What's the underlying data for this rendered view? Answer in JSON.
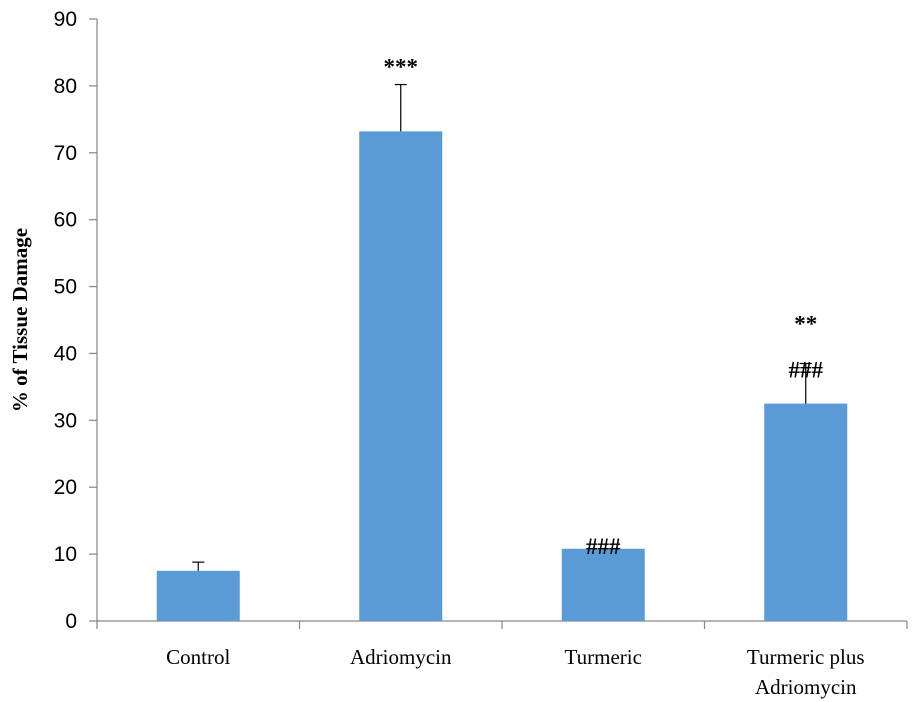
{
  "chart_data": {
    "type": "bar",
    "title": "",
    "xlabel": "",
    "ylabel": "% of Tissue Damage",
    "ylim": [
      0,
      90
    ],
    "yticks": [
      0,
      10,
      20,
      30,
      40,
      50,
      60,
      70,
      80,
      90
    ],
    "grid": false,
    "legend": "none",
    "bar_color": "#5b9bd5",
    "categories": [
      [
        "Control"
      ],
      [
        "Adriomycin"
      ],
      [
        "Turmeric"
      ],
      [
        "Turmeric plus",
        "Adriomycin"
      ]
    ],
    "values": [
      7.5,
      73.2,
      10.8,
      32.5
    ],
    "error_upper": [
      1.3,
      7.0,
      0,
      6.0
    ],
    "annotations": [
      {
        "category_index": 1,
        "lines": [
          "***"
        ]
      },
      {
        "category_index": 2,
        "lines": [
          "###"
        ]
      },
      {
        "category_index": 3,
        "lines": [
          "**",
          "###"
        ]
      }
    ]
  }
}
